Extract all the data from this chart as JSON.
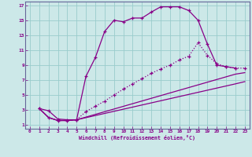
{
  "xlabel": "Windchill (Refroidissement éolien,°C)",
  "bg_color": "#cce8e8",
  "line_color": "#880088",
  "grid_color": "#99cccc",
  "xlim": [
    -0.5,
    23.5
  ],
  "ylim": [
    0.5,
    17.5
  ],
  "xticks": [
    0,
    1,
    2,
    3,
    4,
    5,
    6,
    7,
    8,
    9,
    10,
    11,
    12,
    13,
    14,
    15,
    16,
    17,
    18,
    19,
    20,
    21,
    22,
    23
  ],
  "yticks": [
    1,
    3,
    5,
    7,
    9,
    11,
    13,
    15,
    17
  ],
  "curve1_x": [
    1,
    2,
    3,
    4,
    5,
    6,
    7,
    8,
    9,
    10,
    11,
    12,
    13,
    14,
    15,
    16,
    17,
    18,
    19,
    20,
    21,
    22
  ],
  "curve1_y": [
    3.2,
    2.9,
    1.8,
    1.7,
    1.7,
    7.5,
    10.0,
    13.5,
    15.0,
    14.8,
    15.3,
    15.3,
    16.1,
    16.8,
    16.8,
    16.8,
    16.3,
    15.0,
    11.8,
    9.0,
    8.8,
    8.6
  ],
  "curve2_x": [
    1,
    2,
    3,
    4,
    5,
    6,
    7,
    8,
    9,
    10,
    11,
    12,
    13,
    14,
    15,
    16,
    17,
    18,
    19,
    20,
    21,
    22,
    23
  ],
  "curve2_y": [
    3.2,
    2.0,
    1.6,
    1.6,
    1.7,
    2.8,
    3.5,
    4.2,
    5.0,
    5.8,
    6.5,
    7.2,
    7.9,
    8.5,
    9.0,
    9.7,
    10.2,
    12.0,
    10.3,
    9.2,
    8.8,
    8.6,
    8.6
  ],
  "curve3_x": [
    1,
    2,
    3,
    4,
    5,
    22,
    23
  ],
  "curve3_y": [
    3.2,
    2.0,
    1.6,
    1.6,
    1.7,
    7.8,
    8.0
  ],
  "curve4_x": [
    1,
    2,
    3,
    4,
    5,
    22,
    23
  ],
  "curve4_y": [
    3.2,
    2.0,
    1.6,
    1.6,
    1.7,
    6.5,
    6.8
  ]
}
